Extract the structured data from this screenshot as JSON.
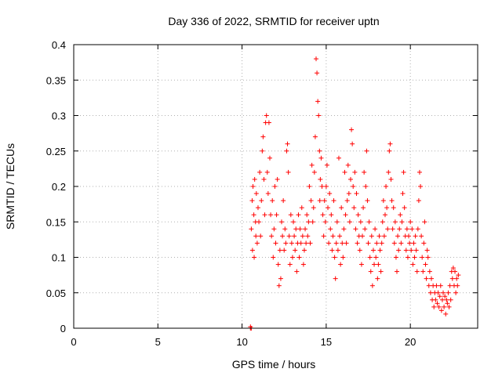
{
  "chart_data": {
    "type": "scatter",
    "title": "Day 336 of 2022, SRMTID for receiver uptn",
    "xlabel": "GPS time / hours",
    "ylabel": "SRMTID / TECUs",
    "xlim": [
      0,
      24
    ],
    "ylim": [
      0,
      0.4
    ],
    "xticks": [
      0,
      5,
      10,
      15,
      20
    ],
    "xtick_labels": [
      "0",
      "5",
      "10",
      "15",
      "20"
    ],
    "yticks": [
      0,
      0.05,
      0.1,
      0.15,
      0.2,
      0.25,
      0.3,
      0.35,
      0.4
    ],
    "ytick_labels": [
      "0",
      "0.05",
      "0.1",
      "0.15",
      "0.2",
      "0.25",
      "0.3",
      "0.35",
      "0.4"
    ],
    "grid": true,
    "marker": "+",
    "marker_color": "#ff0000",
    "series": [
      {
        "name": "SRMTID",
        "points": [
          [
            10.5,
            0.0
          ],
          [
            10.5,
            0.002
          ],
          [
            10.55,
            0.0
          ],
          [
            10.55,
            0.14
          ],
          [
            10.6,
            0.18
          ],
          [
            10.62,
            0.11
          ],
          [
            10.65,
            0.2
          ],
          [
            10.7,
            0.16
          ],
          [
            10.72,
            0.1
          ],
          [
            10.75,
            0.21
          ],
          [
            10.8,
            0.15
          ],
          [
            10.82,
            0.13
          ],
          [
            10.85,
            0.19
          ],
          [
            10.9,
            0.12
          ],
          [
            10.95,
            0.17
          ],
          [
            11.0,
            0.15
          ],
          [
            11.05,
            0.22
          ],
          [
            11.1,
            0.13
          ],
          [
            11.15,
            0.18
          ],
          [
            11.2,
            0.25
          ],
          [
            11.25,
            0.27
          ],
          [
            11.3,
            0.21
          ],
          [
            11.35,
            0.16
          ],
          [
            11.4,
            0.29
          ],
          [
            11.45,
            0.3
          ],
          [
            11.5,
            0.22
          ],
          [
            11.55,
            0.19
          ],
          [
            11.6,
            0.29
          ],
          [
            11.65,
            0.24
          ],
          [
            11.7,
            0.16
          ],
          [
            11.75,
            0.13
          ],
          [
            11.8,
            0.18
          ],
          [
            11.85,
            0.1
          ],
          [
            11.9,
            0.14
          ],
          [
            11.95,
            0.2
          ],
          [
            12.0,
            0.12
          ],
          [
            12.05,
            0.16
          ],
          [
            12.1,
            0.21
          ],
          [
            12.15,
            0.09
          ],
          [
            12.2,
            0.06
          ],
          [
            12.25,
            0.11
          ],
          [
            12.3,
            0.07
          ],
          [
            12.35,
            0.15
          ],
          [
            12.4,
            0.13
          ],
          [
            12.45,
            0.18
          ],
          [
            12.5,
            0.11
          ],
          [
            12.55,
            0.14
          ],
          [
            12.6,
            0.12
          ],
          [
            12.65,
            0.25
          ],
          [
            12.7,
            0.26
          ],
          [
            12.75,
            0.22
          ],
          [
            12.8,
            0.13
          ],
          [
            12.85,
            0.09
          ],
          [
            12.9,
            0.16
          ],
          [
            12.95,
            0.12
          ],
          [
            13.0,
            0.1
          ],
          [
            13.05,
            0.15
          ],
          [
            13.1,
            0.13
          ],
          [
            13.15,
            0.11
          ],
          [
            13.2,
            0.14
          ],
          [
            13.25,
            0.08
          ],
          [
            13.3,
            0.12
          ],
          [
            13.35,
            0.16
          ],
          [
            13.4,
            0.1
          ],
          [
            13.45,
            0.14
          ],
          [
            13.5,
            0.12
          ],
          [
            13.55,
            0.17
          ],
          [
            13.6,
            0.13
          ],
          [
            13.65,
            0.09
          ],
          [
            13.7,
            0.11
          ],
          [
            13.75,
            0.14
          ],
          [
            13.8,
            0.12
          ],
          [
            13.85,
            0.16
          ],
          [
            13.9,
            0.13
          ],
          [
            13.95,
            0.15
          ],
          [
            14.0,
            0.2
          ],
          [
            14.05,
            0.12
          ],
          [
            14.1,
            0.18
          ],
          [
            14.15,
            0.23
          ],
          [
            14.2,
            0.15
          ],
          [
            14.25,
            0.17
          ],
          [
            14.3,
            0.22
          ],
          [
            14.35,
            0.27
          ],
          [
            14.4,
            0.38
          ],
          [
            14.45,
            0.36
          ],
          [
            14.5,
            0.32
          ],
          [
            14.55,
            0.3
          ],
          [
            14.6,
            0.25
          ],
          [
            14.62,
            0.18
          ],
          [
            14.65,
            0.21
          ],
          [
            14.7,
            0.24
          ],
          [
            14.75,
            0.2
          ],
          [
            14.8,
            0.16
          ],
          [
            14.85,
            0.13
          ],
          [
            14.9,
            0.18
          ],
          [
            14.95,
            0.15
          ],
          [
            15.0,
            0.2
          ],
          [
            15.05,
            0.23
          ],
          [
            15.1,
            0.17
          ],
          [
            15.15,
            0.12
          ],
          [
            15.2,
            0.19
          ],
          [
            15.25,
            0.14
          ],
          [
            15.3,
            0.16
          ],
          [
            15.35,
            0.11
          ],
          [
            15.4,
            0.13
          ],
          [
            15.45,
            0.18
          ],
          [
            15.5,
            0.1
          ],
          [
            15.55,
            0.07
          ],
          [
            15.6,
            0.12
          ],
          [
            15.65,
            0.15
          ],
          [
            15.7,
            0.11
          ],
          [
            15.75,
            0.24
          ],
          [
            15.8,
            0.13
          ],
          [
            15.85,
            0.09
          ],
          [
            15.9,
            0.17
          ],
          [
            15.95,
            0.12
          ],
          [
            16.0,
            0.1
          ],
          [
            16.05,
            0.14
          ],
          [
            16.1,
            0.22
          ],
          [
            16.15,
            0.16
          ],
          [
            16.2,
            0.12
          ],
          [
            16.25,
            0.18
          ],
          [
            16.3,
            0.23
          ],
          [
            16.35,
            0.19
          ],
          [
            16.4,
            0.15
          ],
          [
            16.45,
            0.21
          ],
          [
            16.5,
            0.28
          ],
          [
            16.55,
            0.26
          ],
          [
            16.6,
            0.2
          ],
          [
            16.65,
            0.17
          ],
          [
            16.7,
            0.22
          ],
          [
            16.75,
            0.14
          ],
          [
            16.8,
            0.19
          ],
          [
            16.85,
            0.12
          ],
          [
            16.9,
            0.16
          ],
          [
            16.95,
            0.13
          ],
          [
            17.0,
            0.11
          ],
          [
            17.05,
            0.15
          ],
          [
            17.1,
            0.09
          ],
          [
            17.15,
            0.13
          ],
          [
            17.2,
            0.17
          ],
          [
            17.25,
            0.22
          ],
          [
            17.3,
            0.14
          ],
          [
            17.35,
            0.2
          ],
          [
            17.4,
            0.25
          ],
          [
            17.45,
            0.18
          ],
          [
            17.5,
            0.12
          ],
          [
            17.55,
            0.15
          ],
          [
            17.6,
            0.1
          ],
          [
            17.65,
            0.08
          ],
          [
            17.7,
            0.13
          ],
          [
            17.75,
            0.06
          ],
          [
            17.8,
            0.11
          ],
          [
            17.85,
            0.09
          ],
          [
            17.9,
            0.14
          ],
          [
            17.95,
            0.1
          ],
          [
            18.0,
            0.12
          ],
          [
            18.05,
            0.07
          ],
          [
            18.1,
            0.09
          ],
          [
            18.15,
            0.13
          ],
          [
            18.2,
            0.11
          ],
          [
            18.25,
            0.08
          ],
          [
            18.3,
            0.12
          ],
          [
            18.35,
            0.15
          ],
          [
            18.4,
            0.18
          ],
          [
            18.45,
            0.13
          ],
          [
            18.5,
            0.16
          ],
          [
            18.55,
            0.2
          ],
          [
            18.6,
            0.17
          ],
          [
            18.65,
            0.14
          ],
          [
            18.7,
            0.22
          ],
          [
            18.75,
            0.25
          ],
          [
            18.8,
            0.26
          ],
          [
            18.85,
            0.21
          ],
          [
            18.9,
            0.18
          ],
          [
            18.95,
            0.14
          ],
          [
            19.0,
            0.17
          ],
          [
            19.05,
            0.12
          ],
          [
            19.1,
            0.15
          ],
          [
            19.15,
            0.1
          ],
          [
            19.2,
            0.08
          ],
          [
            19.25,
            0.13
          ],
          [
            19.3,
            0.11
          ],
          [
            19.35,
            0.14
          ],
          [
            19.4,
            0.16
          ],
          [
            19.45,
            0.12
          ],
          [
            19.5,
            0.15
          ],
          [
            19.55,
            0.19
          ],
          [
            19.6,
            0.22
          ],
          [
            19.65,
            0.17
          ],
          [
            19.7,
            0.13
          ],
          [
            19.75,
            0.11
          ],
          [
            19.8,
            0.14
          ],
          [
            19.85,
            0.1
          ],
          [
            19.9,
            0.13
          ],
          [
            19.95,
            0.12
          ],
          [
            20.0,
            0.15
          ],
          [
            20.05,
            0.11
          ],
          [
            20.1,
            0.14
          ],
          [
            20.15,
            0.09
          ],
          [
            20.2,
            0.12
          ],
          [
            20.25,
            0.1
          ],
          [
            20.3,
            0.13
          ],
          [
            20.35,
            0.11
          ],
          [
            20.4,
            0.08
          ],
          [
            20.45,
            0.14
          ],
          [
            20.5,
            0.18
          ],
          [
            20.55,
            0.22
          ],
          [
            20.6,
            0.2
          ],
          [
            20.65,
            0.13
          ],
          [
            20.7,
            0.1
          ],
          [
            20.75,
            0.08
          ],
          [
            20.8,
            0.12
          ],
          [
            20.85,
            0.15
          ],
          [
            20.9,
            0.09
          ],
          [
            20.95,
            0.07
          ],
          [
            21.0,
            0.11
          ],
          [
            21.05,
            0.1
          ],
          [
            21.1,
            0.06
          ],
          [
            21.15,
            0.08
          ],
          [
            21.2,
            0.05
          ],
          [
            21.25,
            0.07
          ],
          [
            21.3,
            0.04
          ],
          [
            21.35,
            0.06
          ],
          [
            21.4,
            0.03
          ],
          [
            21.45,
            0.05
          ],
          [
            21.5,
            0.04
          ],
          [
            21.55,
            0.06
          ],
          [
            21.6,
            0.035
          ],
          [
            21.65,
            0.05
          ],
          [
            21.7,
            0.03
          ],
          [
            21.75,
            0.045
          ],
          [
            21.8,
            0.06
          ],
          [
            21.85,
            0.025
          ],
          [
            21.9,
            0.04
          ],
          [
            21.95,
            0.05
          ],
          [
            22.0,
            0.03
          ],
          [
            22.05,
            0.045
          ],
          [
            22.1,
            0.02
          ],
          [
            22.15,
            0.04
          ],
          [
            22.2,
            0.035
          ],
          [
            22.25,
            0.05
          ],
          [
            22.3,
            0.03
          ],
          [
            22.35,
            0.06
          ],
          [
            22.4,
            0.04
          ],
          [
            22.45,
            0.08
          ],
          [
            22.5,
            0.07
          ],
          [
            22.55,
            0.085
          ],
          [
            22.6,
            0.06
          ],
          [
            22.65,
            0.08
          ],
          [
            22.7,
            0.05
          ],
          [
            22.75,
            0.07
          ],
          [
            22.8,
            0.06
          ],
          [
            22.85,
            0.075
          ]
        ]
      }
    ]
  }
}
